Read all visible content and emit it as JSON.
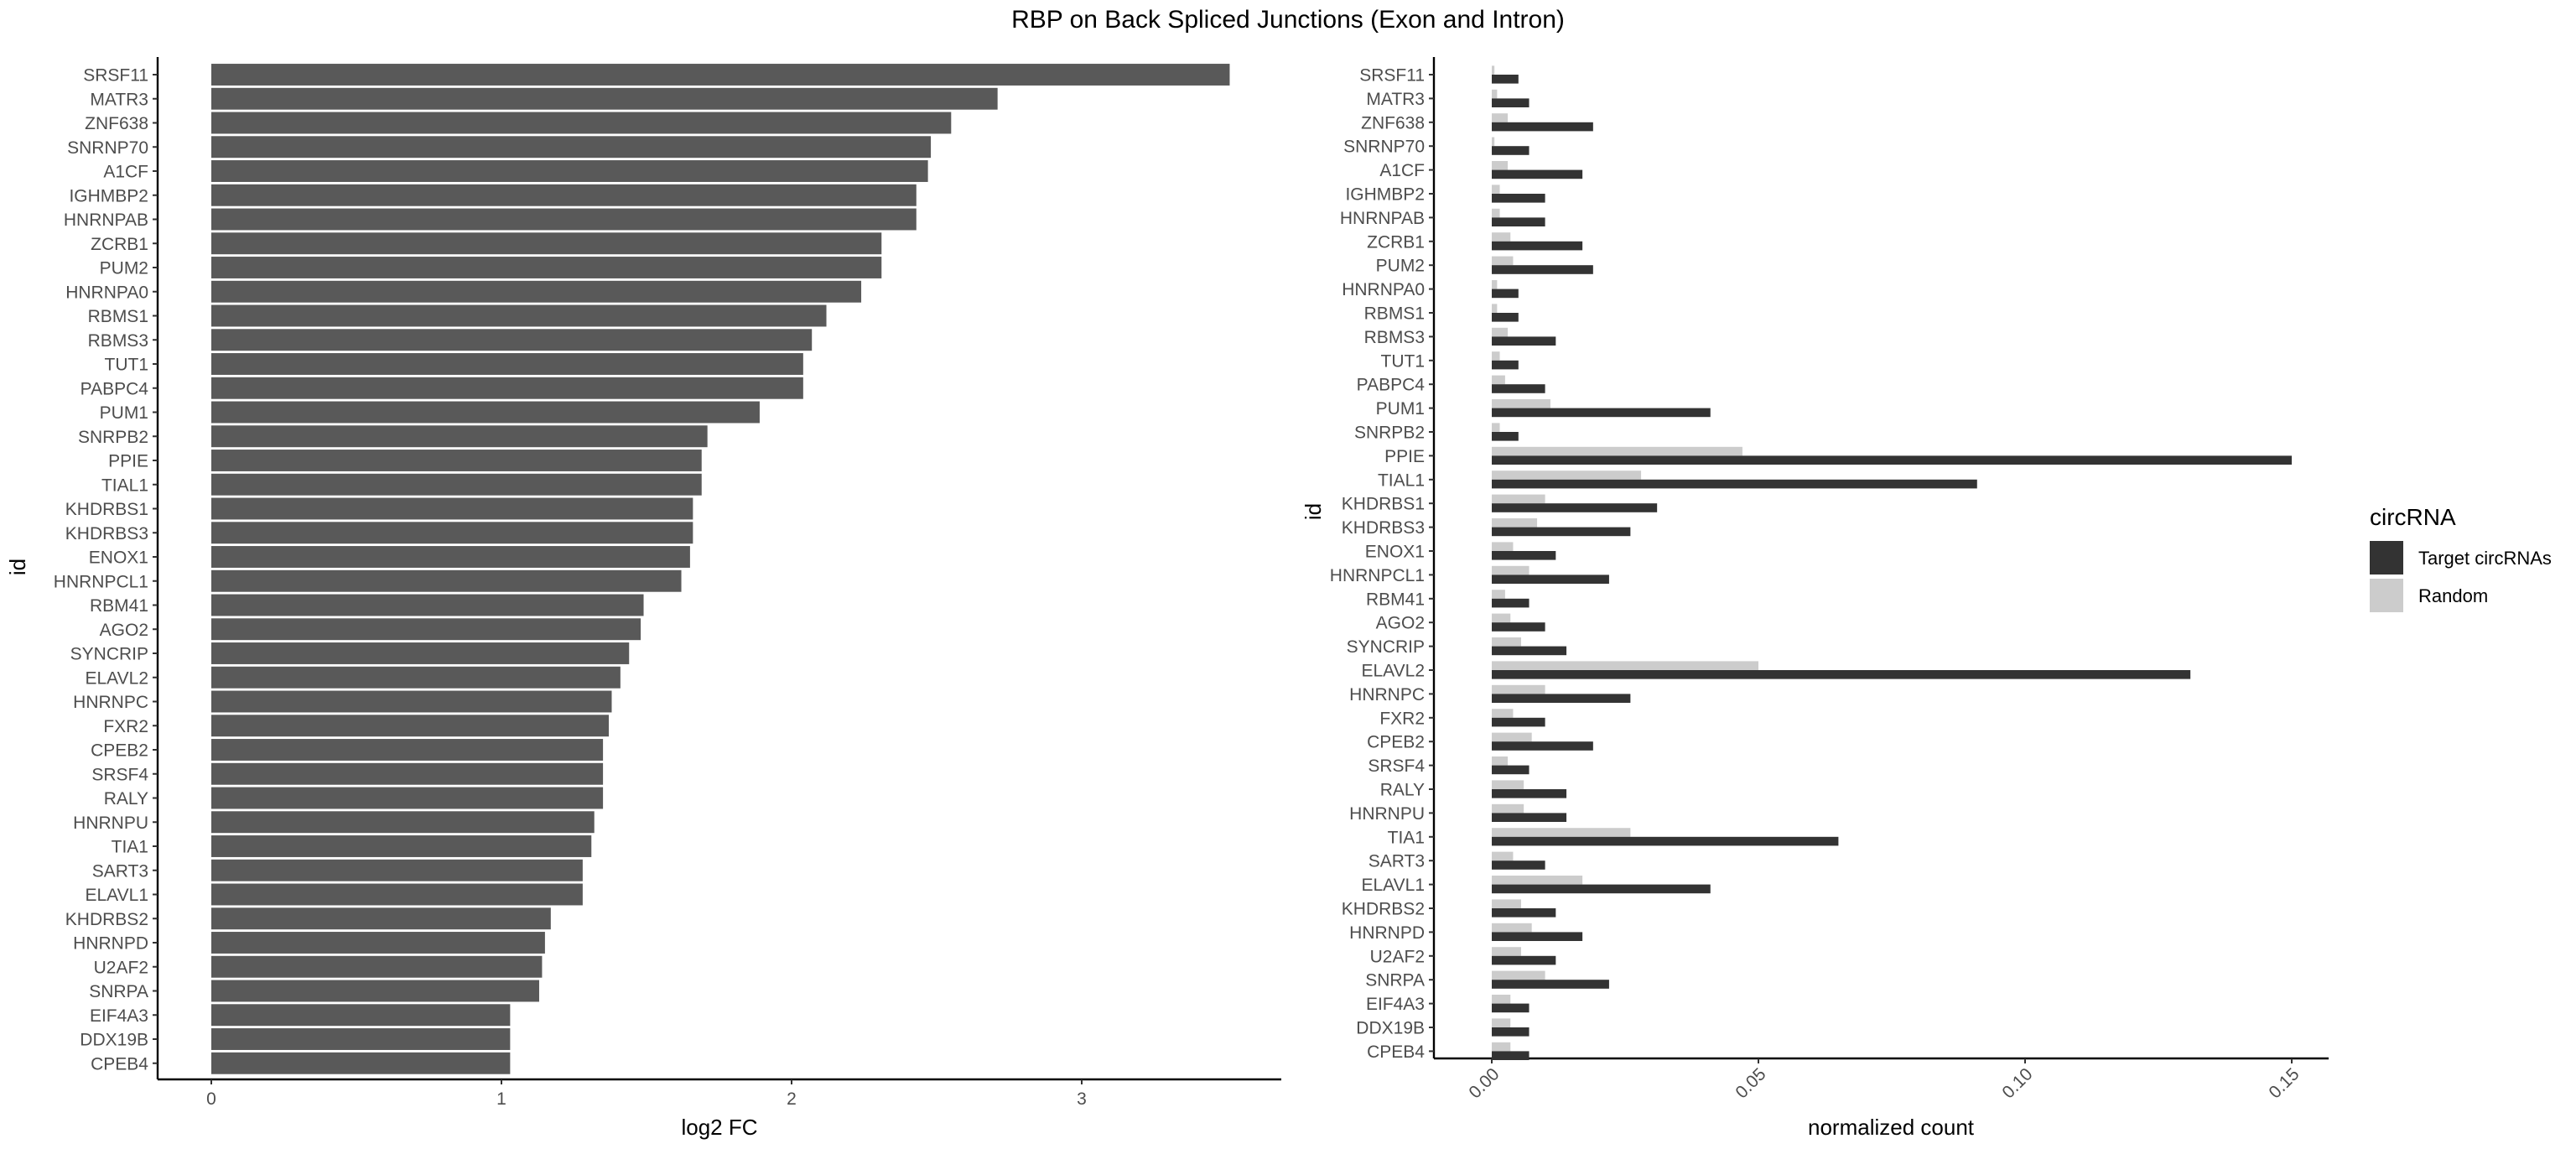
{
  "chart_data": [
    {
      "type": "bar",
      "orientation": "horizontal",
      "title": "RBP on Back Spliced Junctions (Exon and Intron)",
      "xlabel": "log2 FC",
      "ylabel": "id",
      "xlim": [
        0,
        3.5
      ],
      "xticks": [
        "0",
        "1",
        "2",
        "3"
      ],
      "bar_color": "#595959",
      "grid": false,
      "categories": [
        "SRSF11",
        "MATR3",
        "ZNF638",
        "SNRNP70",
        "A1CF",
        "IGHMBP2",
        "HNRNPAB",
        "ZCRB1",
        "PUM2",
        "HNRNPA0",
        "RBMS1",
        "RBMS3",
        "TUT1",
        "PABPC4",
        "PUM1",
        "SNRPB2",
        "PPIE",
        "TIAL1",
        "KHDRBS1",
        "KHDRBS3",
        "ENOX1",
        "HNRNPCL1",
        "RBM41",
        "AGO2",
        "SYNCRIP",
        "ELAVL2",
        "HNRNPC",
        "FXR2",
        "CPEB2",
        "SRSF4",
        "RALY",
        "HNRNPU",
        "TIA1",
        "SART3",
        "ELAVL1",
        "KHDRBS2",
        "HNRNPD",
        "U2AF2",
        "SNRPA",
        "EIF4A3",
        "DDX19B",
        "CPEB4"
      ],
      "values": [
        3.51,
        2.71,
        2.55,
        2.48,
        2.47,
        2.43,
        2.43,
        2.31,
        2.31,
        2.24,
        2.12,
        2.07,
        2.04,
        2.04,
        1.89,
        1.71,
        1.69,
        1.69,
        1.66,
        1.66,
        1.65,
        1.62,
        1.49,
        1.48,
        1.44,
        1.41,
        1.38,
        1.37,
        1.35,
        1.35,
        1.35,
        1.32,
        1.31,
        1.28,
        1.28,
        1.17,
        1.15,
        1.14,
        1.13,
        1.03,
        1.03,
        1.03
      ]
    },
    {
      "type": "bar",
      "orientation": "horizontal",
      "xlabel": "normalized count",
      "ylabel": "id",
      "xlim": [
        0,
        0.157
      ],
      "xticks": [
        "0.00",
        "0.05",
        "0.10",
        "0.15"
      ],
      "grid": false,
      "legend": {
        "title": "circRNA",
        "position": "right"
      },
      "categories": [
        "SRSF11",
        "MATR3",
        "ZNF638",
        "SNRNP70",
        "A1CF",
        "IGHMBP2",
        "HNRNPAB",
        "ZCRB1",
        "PUM2",
        "HNRNPA0",
        "RBMS1",
        "RBMS3",
        "TUT1",
        "PABPC4",
        "PUM1",
        "SNRPB2",
        "PPIE",
        "TIAL1",
        "KHDRBS1",
        "KHDRBS3",
        "ENOX1",
        "HNRNPCL1",
        "RBM41",
        "AGO2",
        "SYNCRIP",
        "ELAVL2",
        "HNRNPC",
        "FXR2",
        "CPEB2",
        "SRSF4",
        "RALY",
        "HNRNPU",
        "TIA1",
        "SART3",
        "ELAVL1",
        "KHDRBS2",
        "HNRNPD",
        "U2AF2",
        "SNRPA",
        "EIF4A3",
        "DDX19B",
        "CPEB4"
      ],
      "series": [
        {
          "name": "Target circRNAs",
          "color": "#333333",
          "values": [
            0.005,
            0.007,
            0.019,
            0.007,
            0.017,
            0.01,
            0.01,
            0.017,
            0.019,
            0.005,
            0.005,
            0.012,
            0.005,
            0.01,
            0.041,
            0.005,
            0.15,
            0.091,
            0.031,
            0.026,
            0.012,
            0.022,
            0.007,
            0.01,
            0.014,
            0.131,
            0.026,
            0.01,
            0.019,
            0.007,
            0.014,
            0.014,
            0.065,
            0.01,
            0.041,
            0.012,
            0.017,
            0.012,
            0.022,
            0.007,
            0.007,
            0.007
          ]
        },
        {
          "name": "Random",
          "color": "#cccccc",
          "values": [
            0.0005,
            0.001,
            0.003,
            0.0005,
            0.003,
            0.0015,
            0.0015,
            0.0035,
            0.004,
            0.001,
            0.001,
            0.003,
            0.0015,
            0.0025,
            0.011,
            0.0015,
            0.047,
            0.028,
            0.01,
            0.0085,
            0.004,
            0.007,
            0.0025,
            0.0035,
            0.0055,
            0.05,
            0.01,
            0.004,
            0.0075,
            0.003,
            0.006,
            0.006,
            0.026,
            0.004,
            0.017,
            0.0055,
            0.0075,
            0.0055,
            0.01,
            0.0035,
            0.0035,
            0.0035
          ]
        }
      ]
    }
  ]
}
